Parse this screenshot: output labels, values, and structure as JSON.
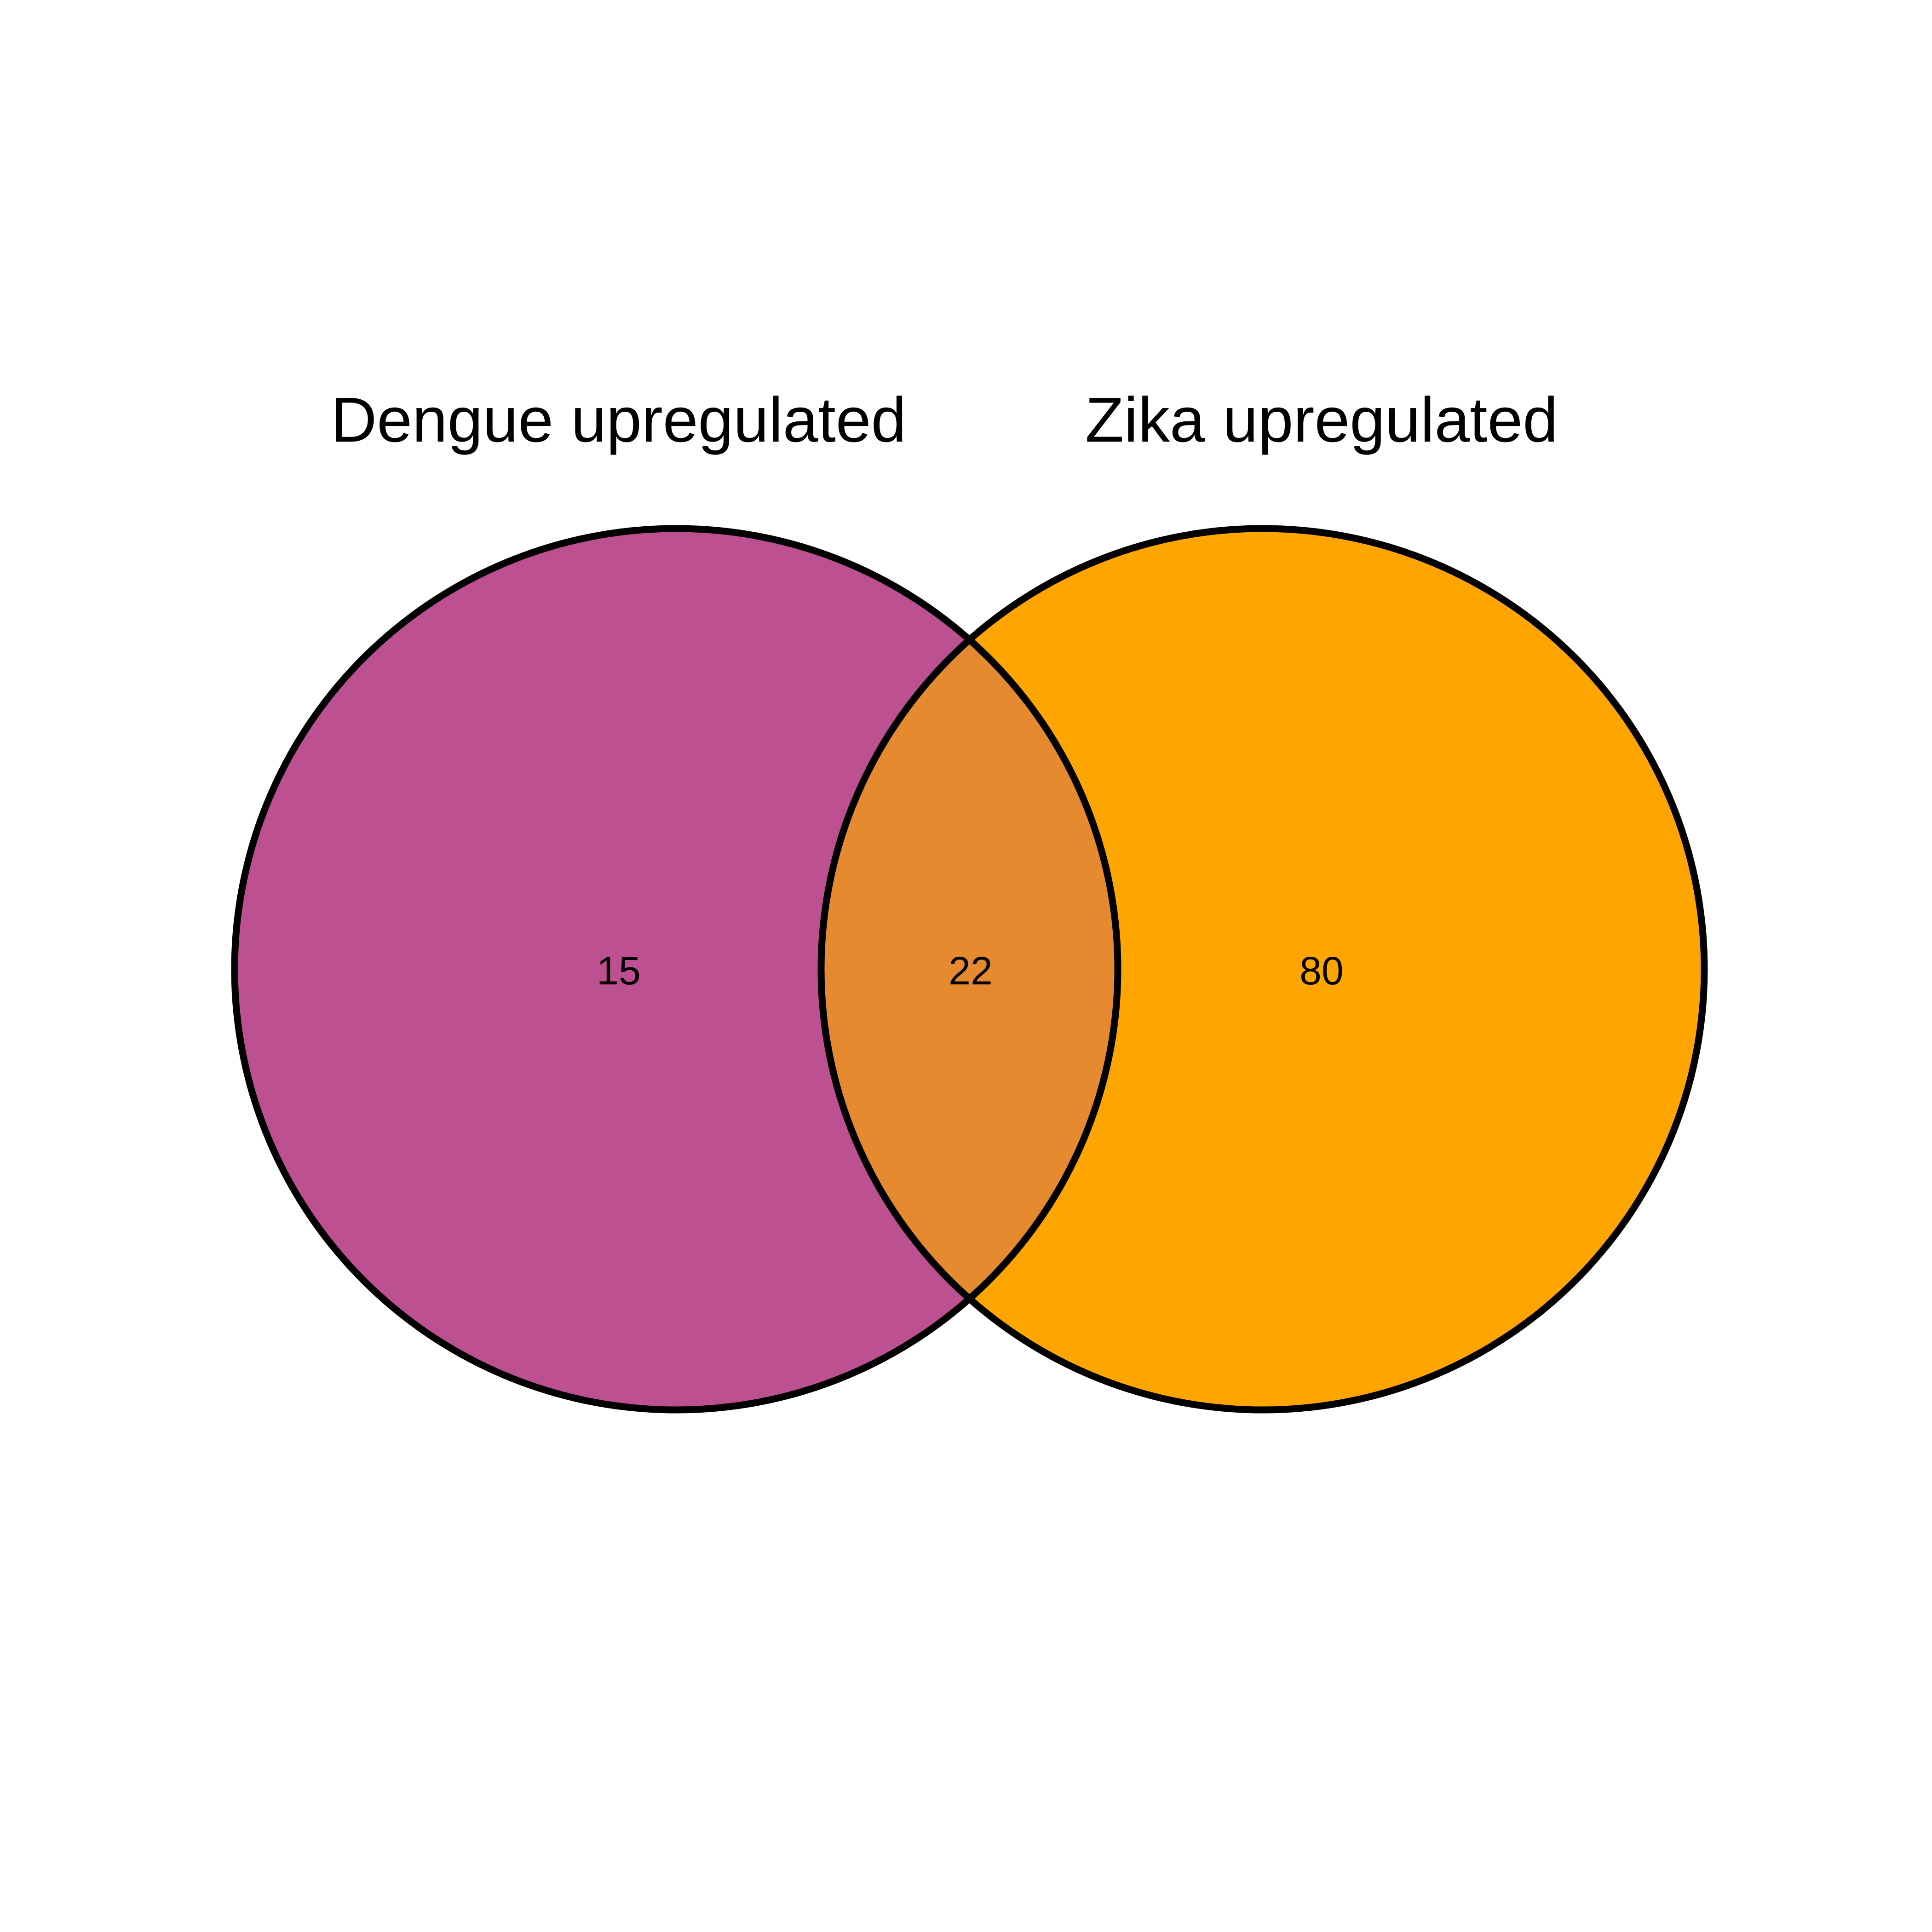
{
  "venn": {
    "sets": [
      {
        "label": "Dengue upregulated",
        "color": "#BD5090"
      },
      {
        "label": "Zika upregulated",
        "color": "#FFA500"
      }
    ],
    "overlap_color": "#E68A30",
    "outline_color": "#000000",
    "counts": {
      "dengue_only": "15",
      "both": "22",
      "zika_only": "80"
    }
  }
}
